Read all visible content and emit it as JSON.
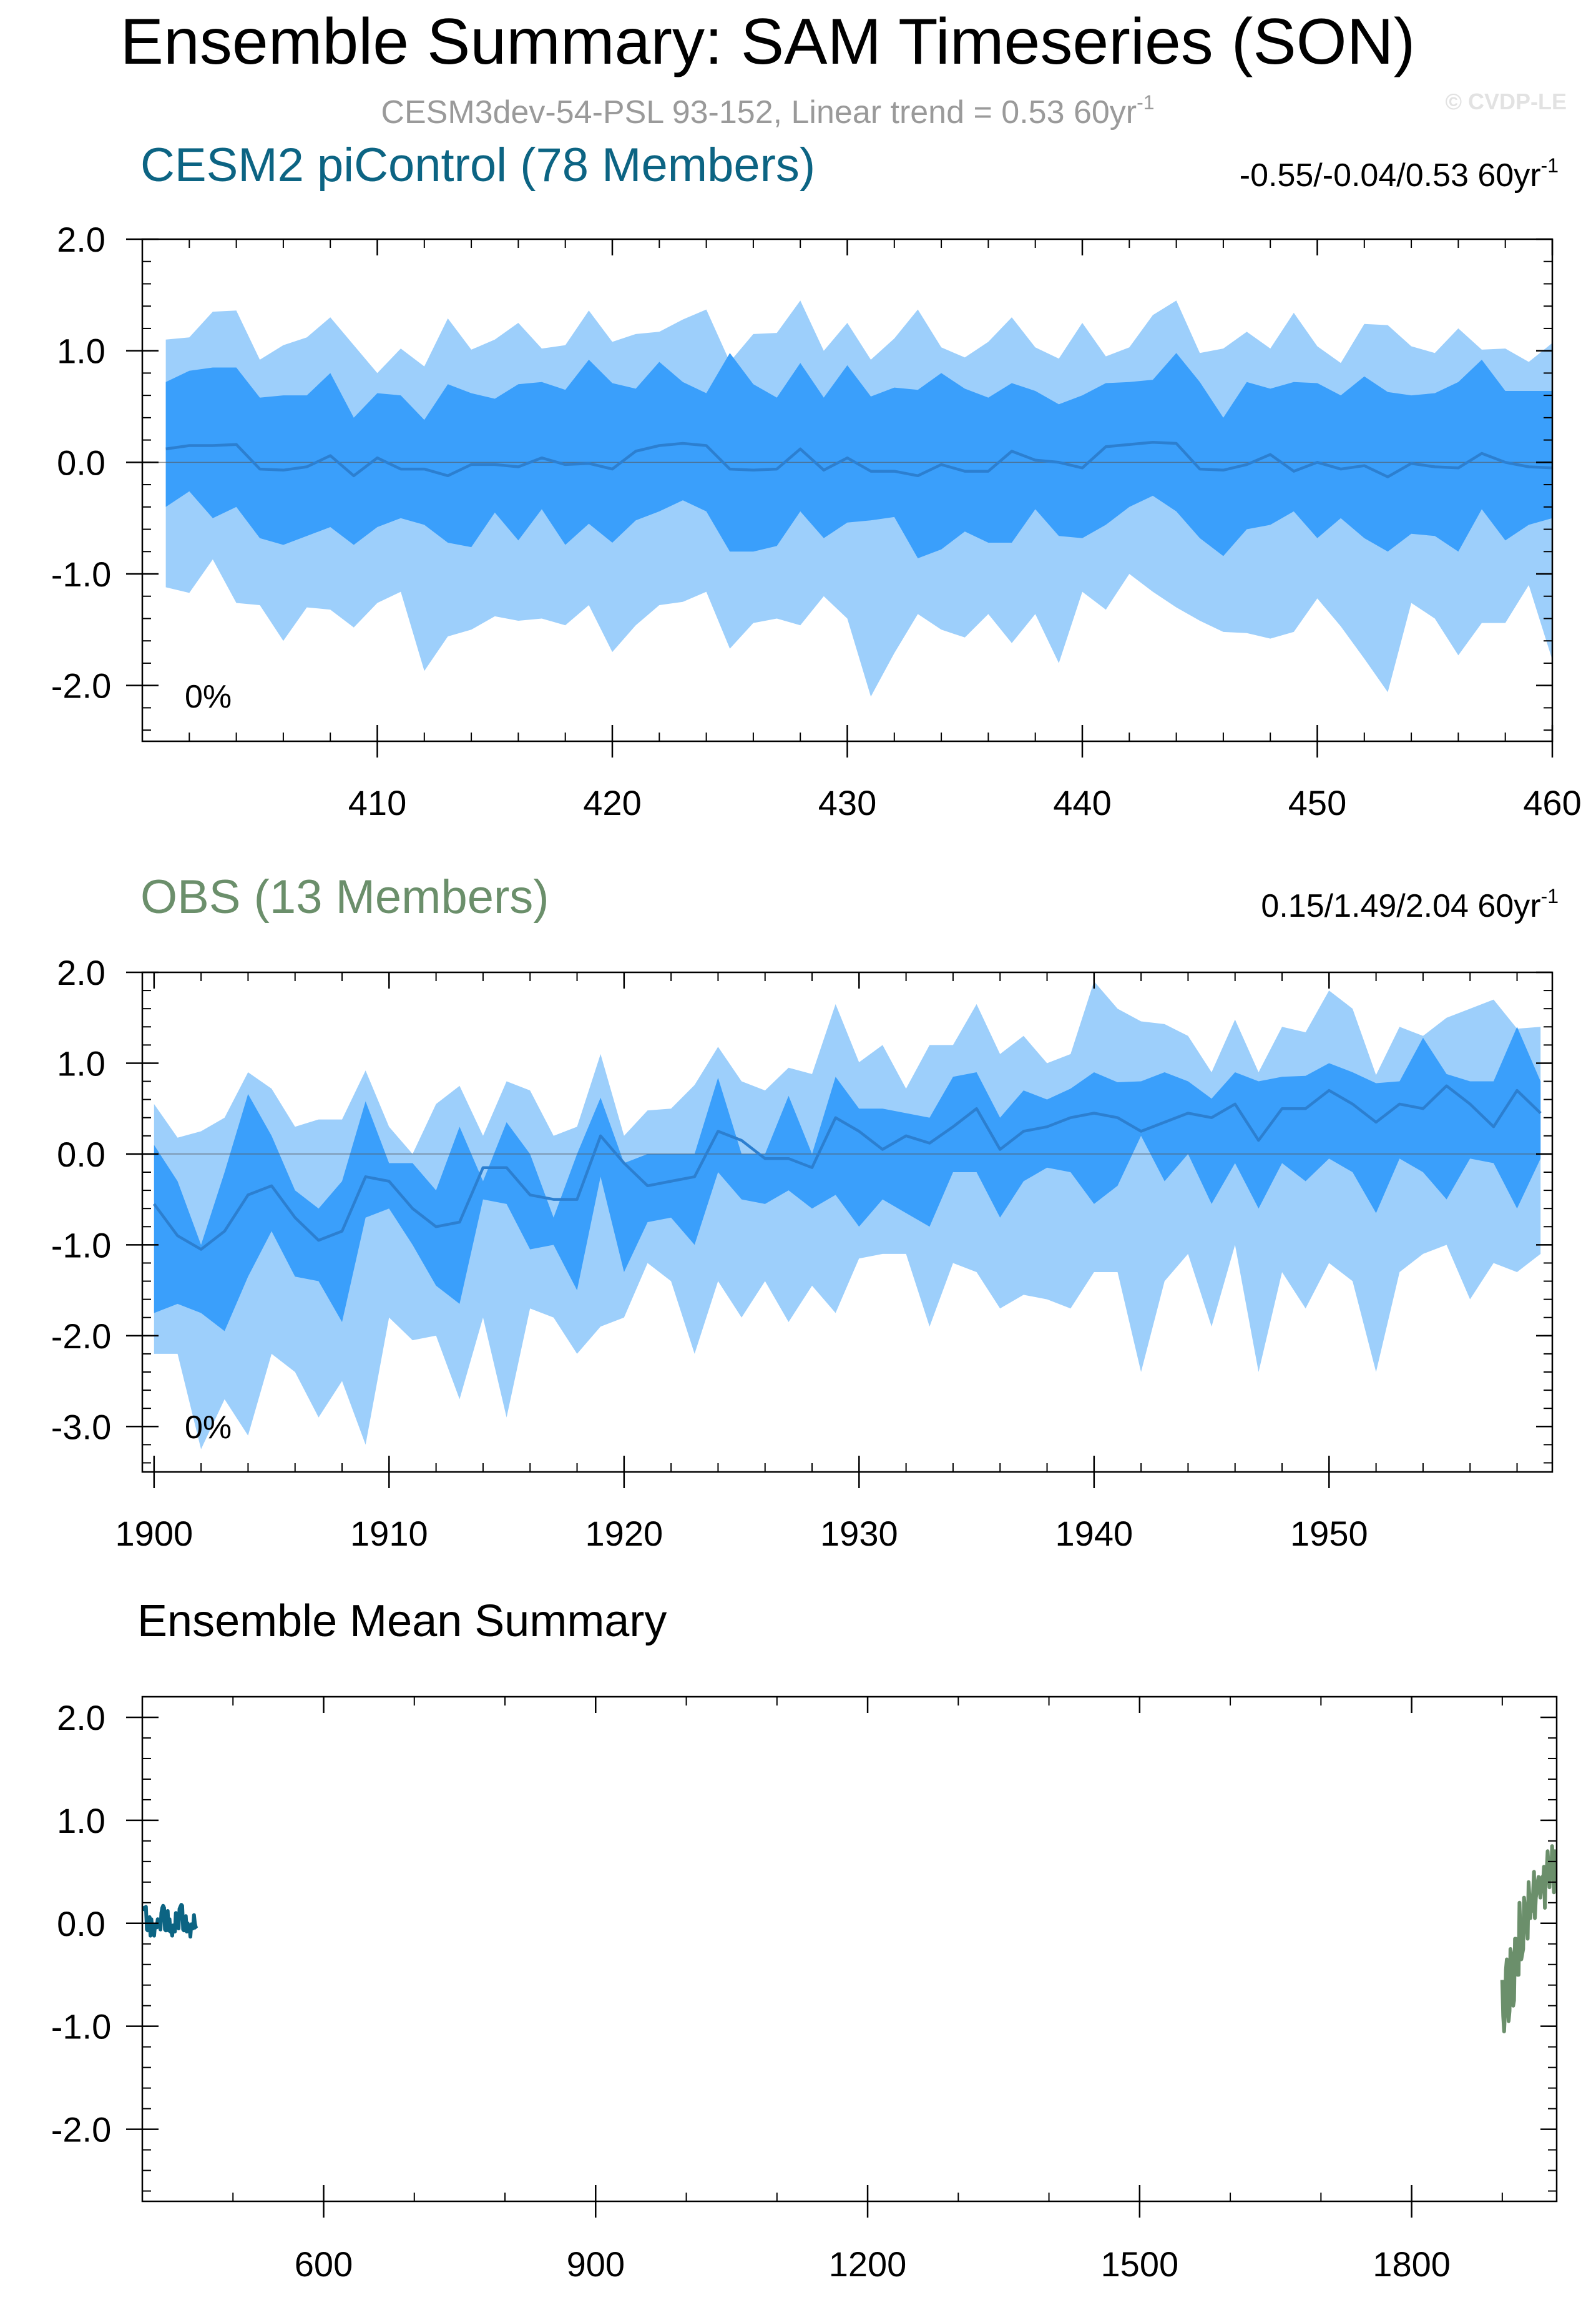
{
  "title": "Ensemble Summary: SAM Timeseries (SON)",
  "subtitle": {
    "text": "CESM3dev-54-PSL 93-152, Linear trend = 0.53 60yr",
    "sup": "-1"
  },
  "watermark": "© CVDP-LE",
  "colors": {
    "band_outer": "#9dcffb",
    "band_inner": "#3a9ffb",
    "median_line": "#2c7fd0",
    "cesm_title": "#0c6483",
    "obs_title": "#6b8f6b",
    "subtitle": "#9a9a9a"
  },
  "chart_data": [
    {
      "type": "area",
      "name": "CESM2 piControl (78 Members)",
      "trend_text": "-0.55/-0.04/0.53 60yr",
      "trend_sup": "-1",
      "pct_label": "0%",
      "xlim": [
        400,
        460
      ],
      "ylim": [
        -2.5,
        2.0
      ],
      "x_ticks": [
        410,
        420,
        430,
        440,
        450,
        460
      ],
      "x_tick_labels": [
        "410",
        "420",
        "430",
        "440",
        "450",
        "460"
      ],
      "y_ticks": [
        2.0,
        1.0,
        0.0,
        -1.0,
        -2.0
      ],
      "y_tick_labels": [
        "2.0",
        "1.0",
        "0.0",
        "-1.0",
        "-2.0"
      ],
      "x_start": 401,
      "band_outer_upper": [
        1.1,
        1.12,
        1.35,
        1.36,
        0.92,
        1.05,
        1.12,
        1.3,
        1.05,
        0.8,
        1.02,
        0.86,
        1.29,
        1.01,
        1.1,
        1.25,
        1.02,
        1.05,
        1.36,
        1.08,
        1.15,
        1.17,
        1.28,
        1.37,
        0.9,
        1.15,
        1.16,
        1.45,
        1.0,
        1.25,
        0.92,
        1.11,
        1.37,
        1.03,
        0.94,
        1.08,
        1.3,
        1.03,
        0.93,
        1.25,
        0.95,
        1.03,
        1.32,
        1.45,
        0.98,
        1.02,
        1.17,
        1.02,
        1.34,
        1.04,
        0.89,
        1.24,
        1.23,
        1.04,
        0.98,
        1.2,
        1.01,
        1.02,
        0.9,
        1.07
      ],
      "band_inner_upper": [
        0.72,
        0.82,
        0.85,
        0.85,
        0.58,
        0.6,
        0.6,
        0.8,
        0.4,
        0.62,
        0.6,
        0.38,
        0.7,
        0.62,
        0.57,
        0.7,
        0.72,
        0.65,
        0.92,
        0.71,
        0.66,
        0.9,
        0.72,
        0.62,
        0.98,
        0.7,
        0.58,
        0.89,
        0.58,
        0.87,
        0.59,
        0.67,
        0.65,
        0.8,
        0.66,
        0.58,
        0.71,
        0.64,
        0.52,
        0.6,
        0.71,
        0.72,
        0.74,
        0.98,
        0.72,
        0.4,
        0.72,
        0.66,
        0.72,
        0.71,
        0.6,
        0.77,
        0.63,
        0.6,
        0.62,
        0.72,
        0.92,
        0.64,
        0.64,
        0.64
      ],
      "median": [
        0.12,
        0.15,
        0.15,
        0.16,
        -0.06,
        -0.07,
        -0.04,
        0.06,
        -0.12,
        0.04,
        -0.06,
        -0.06,
        -0.12,
        -0.02,
        -0.02,
        -0.04,
        0.04,
        -0.02,
        -0.01,
        -0.06,
        0.1,
        0.15,
        0.17,
        0.15,
        -0.06,
        -0.07,
        -0.06,
        0.12,
        -0.07,
        0.04,
        -0.08,
        -0.08,
        -0.12,
        -0.02,
        -0.08,
        -0.08,
        0.1,
        0.02,
        0.0,
        -0.05,
        0.14,
        0.16,
        0.18,
        0.17,
        -0.06,
        -0.07,
        -0.02,
        0.07,
        -0.08,
        0.0,
        -0.06,
        -0.03,
        -0.13,
        -0.01,
        -0.04,
        -0.05,
        0.08,
        0.0,
        -0.04,
        -0.05
      ],
      "band_inner_lower": [
        -0.4,
        -0.26,
        -0.5,
        -0.4,
        -0.68,
        -0.74,
        -0.66,
        -0.58,
        -0.74,
        -0.58,
        -0.5,
        -0.56,
        -0.72,
        -0.76,
        -0.45,
        -0.7,
        -0.42,
        -0.74,
        -0.55,
        -0.72,
        -0.52,
        -0.44,
        -0.34,
        -0.44,
        -0.8,
        -0.8,
        -0.75,
        -0.44,
        -0.68,
        -0.54,
        -0.52,
        -0.49,
        -0.86,
        -0.78,
        -0.62,
        -0.72,
        -0.72,
        -0.42,
        -0.66,
        -0.68,
        -0.56,
        -0.4,
        -0.3,
        -0.44,
        -0.68,
        -0.84,
        -0.6,
        -0.56,
        -0.44,
        -0.68,
        -0.5,
        -0.68,
        -0.8,
        -0.64,
        -0.66,
        -0.8,
        -0.42,
        -0.7,
        -0.56,
        -0.5
      ],
      "band_outer_lower": [
        -1.12,
        -1.17,
        -0.87,
        -1.26,
        -1.28,
        -1.6,
        -1.3,
        -1.32,
        -1.48,
        -1.26,
        -1.16,
        -1.87,
        -1.56,
        -1.5,
        -1.38,
        -1.42,
        -1.4,
        -1.46,
        -1.28,
        -1.7,
        -1.46,
        -1.28,
        -1.25,
        -1.16,
        -1.67,
        -1.44,
        -1.4,
        -1.46,
        -1.2,
        -1.4,
        -2.1,
        -1.71,
        -1.36,
        -1.5,
        -1.57,
        -1.36,
        -1.62,
        -1.36,
        -1.8,
        -1.16,
        -1.32,
        -1.0,
        -1.16,
        -1.3,
        -1.42,
        -1.52,
        -1.53,
        -1.58,
        -1.52,
        -1.22,
        -1.47,
        -1.76,
        -2.06,
        -1.26,
        -1.4,
        -1.73,
        -1.44,
        -1.44,
        -1.1,
        -1.77
      ]
    },
    {
      "type": "area",
      "name": "OBS (13 Members)",
      "trend_text": "0.15/1.49/2.04 60yr",
      "trend_sup": "-1",
      "pct_label": "0%",
      "xlim": [
        1899.5,
        1959.5
      ],
      "ylim": [
        -3.5,
        2.0
      ],
      "x_ticks": [
        1900,
        1910,
        1920,
        1930,
        1940,
        1950
      ],
      "x_tick_labels": [
        "1900",
        "1910",
        "1920",
        "1930",
        "1940",
        "1950"
      ],
      "y_ticks": [
        2.0,
        1.0,
        0.0,
        -1.0,
        -2.0,
        -3.0
      ],
      "y_tick_labels": [
        "2.0",
        "1.0",
        "0.0",
        "-1.0",
        "-2.0",
        "-3.0"
      ],
      "x_start": 1900,
      "band_outer_upper": [
        0.55,
        0.18,
        0.25,
        0.4,
        0.9,
        0.72,
        0.3,
        0.38,
        0.38,
        0.92,
        0.3,
        0.0,
        0.55,
        0.75,
        0.2,
        0.8,
        0.7,
        0.2,
        0.3,
        1.1,
        0.2,
        0.48,
        0.5,
        0.76,
        1.18,
        0.8,
        0.7,
        0.95,
        0.88,
        1.65,
        1.01,
        1.2,
        0.72,
        1.2,
        1.2,
        1.65,
        1.1,
        1.3,
        1.0,
        1.1,
        1.9,
        1.6,
        1.46,
        1.43,
        1.3,
        0.9,
        1.48,
        0.9,
        1.4,
        1.34,
        1.8,
        1.6,
        0.87,
        1.4,
        1.3,
        1.5,
        1.6,
        1.7,
        1.38,
        1.4
      ],
      "band_inner_upper": [
        0.1,
        -0.3,
        -1.0,
        -0.2,
        0.66,
        0.2,
        -0.4,
        -0.6,
        -0.3,
        0.58,
        -0.1,
        -0.1,
        -0.4,
        0.3,
        -0.3,
        0.35,
        0.0,
        -0.7,
        0.0,
        0.62,
        -0.1,
        0.0,
        0.0,
        0.0,
        0.84,
        0.0,
        0.0,
        0.64,
        0.0,
        0.85,
        0.5,
        0.5,
        0.45,
        0.4,
        0.85,
        0.9,
        0.4,
        0.7,
        0.6,
        0.72,
        0.9,
        0.79,
        0.8,
        0.9,
        0.8,
        0.61,
        0.9,
        0.8,
        0.85,
        0.86,
        1.0,
        0.9,
        0.78,
        0.8,
        1.28,
        0.88,
        0.8,
        0.8,
        1.4,
        0.8
      ],
      "median": [
        -0.55,
        -0.9,
        -1.05,
        -0.85,
        -0.45,
        -0.35,
        -0.7,
        -0.95,
        -0.85,
        -0.25,
        -0.3,
        -0.6,
        -0.8,
        -0.75,
        -0.15,
        -0.15,
        -0.45,
        -0.5,
        -0.5,
        0.2,
        -0.1,
        -0.35,
        -0.3,
        -0.25,
        0.25,
        0.15,
        -0.05,
        -0.05,
        -0.15,
        0.4,
        0.25,
        0.05,
        0.2,
        0.12,
        0.3,
        0.5,
        0.05,
        0.25,
        0.3,
        0.4,
        0.45,
        0.4,
        0.25,
        0.35,
        0.45,
        0.4,
        0.55,
        0.15,
        0.5,
        0.5,
        0.7,
        0.55,
        0.35,
        0.55,
        0.5,
        0.75,
        0.55,
        0.3,
        0.7,
        0.45
      ],
      "band_inner_lower": [
        -1.75,
        -1.65,
        -1.75,
        -1.95,
        -1.35,
        -0.85,
        -1.35,
        -1.4,
        -1.85,
        -0.7,
        -0.6,
        -1.0,
        -1.45,
        -1.65,
        -0.5,
        -0.55,
        -1.05,
        -1.0,
        -1.5,
        -0.25,
        -1.3,
        -0.75,
        -0.7,
        -1.0,
        -0.2,
        -0.5,
        -0.55,
        -0.4,
        -0.6,
        -0.45,
        -0.8,
        -0.5,
        -0.65,
        -0.8,
        -0.2,
        -0.2,
        -0.7,
        -0.3,
        -0.15,
        -0.2,
        -0.55,
        -0.35,
        0.2,
        -0.3,
        0.0,
        -0.55,
        -0.1,
        -0.6,
        -0.1,
        -0.3,
        -0.05,
        -0.2,
        -0.65,
        -0.05,
        -0.2,
        -0.5,
        -0.05,
        -0.1,
        -0.6,
        -0.05
      ],
      "band_outer_lower": [
        -2.2,
        -2.2,
        -3.25,
        -2.7,
        -3.1,
        -2.2,
        -2.4,
        -2.9,
        -2.5,
        -3.2,
        -1.8,
        -2.05,
        -2.0,
        -2.7,
        -1.8,
        -2.9,
        -1.7,
        -1.8,
        -2.2,
        -1.9,
        -1.8,
        -1.2,
        -1.4,
        -2.2,
        -1.4,
        -1.8,
        -1.4,
        -1.85,
        -1.45,
        -1.75,
        -1.15,
        -1.1,
        -1.1,
        -1.9,
        -1.2,
        -1.3,
        -1.7,
        -1.55,
        -1.6,
        -1.7,
        -1.3,
        -1.3,
        -2.4,
        -1.4,
        -1.1,
        -1.9,
        -1.0,
        -2.4,
        -1.3,
        -1.7,
        -1.2,
        -1.4,
        -2.4,
        -1.3,
        -1.1,
        -1.0,
        -1.6,
        -1.2,
        -1.3,
        -1.1
      ]
    },
    {
      "type": "line",
      "title": "Ensemble Mean Summary",
      "xlim": [
        400,
        1960
      ],
      "ylim": [
        -2.7,
        2.2
      ],
      "x_ticks": [
        600,
        900,
        1200,
        1500,
        1800
      ],
      "x_tick_labels": [
        "600",
        "900",
        "1200",
        "1500",
        "1800"
      ],
      "y_ticks": [
        2.0,
        1.0,
        0.0,
        -1.0,
        -2.0
      ],
      "y_tick_labels": [
        "2.0",
        "1.0",
        "0.0",
        "-1.0",
        "-2.0"
      ],
      "series": [
        {
          "name": "CESM2 piControl (78 Members)",
          "color": "#0c6483",
          "source": 0
        },
        {
          "name": "OBS (13 Members)",
          "color": "#6b8f6b",
          "source": 1
        }
      ]
    }
  ]
}
